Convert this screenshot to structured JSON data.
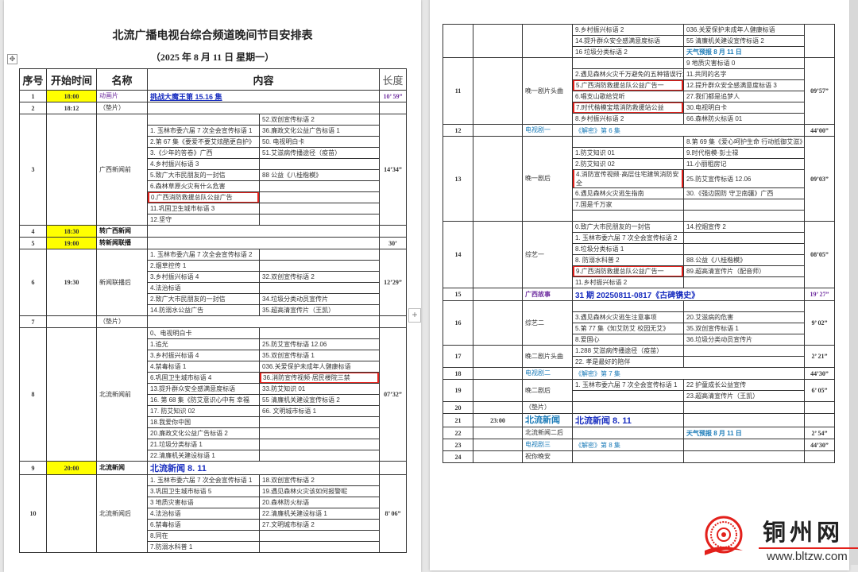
{
  "title": "北流广播电视台综合频道晚间节目安排表",
  "subtitle": "（2025 年 8 月 11 日  星期一）",
  "headers": [
    "序号",
    "开始时间",
    "名称",
    "内容",
    "长度"
  ],
  "colors": {
    "highlight": "#ffff00",
    "box": "#e3201b",
    "purple": "#7030a0",
    "teal": "#1b7bb8",
    "blue": "#1a2fc0"
  },
  "icons": {
    "move_handle": "move-icon",
    "add": "plus-icon"
  },
  "pages": [
    {
      "rows": [
        {
          "seq": "1",
          "time": "18:00",
          "time_highlight": true,
          "name": "动画片",
          "name_style": "purple",
          "content": "挑战大魔王第 15.16 集",
          "content_style": "link",
          "length": "10’ 59”",
          "length_style": "purple"
        },
        {
          "seq": "2",
          "time": "18:12",
          "name": "（垫片）",
          "content": "",
          "length": ""
        },
        {
          "seq": "3",
          "time": "",
          "name": "广西新闻前",
          "length": "14’34”",
          "items": [
            {
              "l": "",
              "r": "52.双创宣传标语 2"
            },
            {
              "l": "1. 玉林市委六届 7 次全会宣传标语 1",
              "r": "36.廉政文化公益广告标语 1"
            },
            {
              "l": "2.第 67 集《要爱不要艾炫酷更自护》",
              "r": "50. 电视明白卡"
            },
            {
              "l": "3.《少年的答卷》广西",
              "r": "51.艾滋病传播途径（疫苗）"
            },
            {
              "l": "4.乡村振兴标语 3",
              "r": ""
            },
            {
              "l": "5.致广大市民朋友的一封信",
              "r": "88 公益《八桂楷模》"
            },
            {
              "l": "6.森林草原火灾有什么危害",
              "r": ""
            },
            {
              "l": "0.广西消防救援总队公益广告",
              "r": "",
              "box": "l"
            },
            {
              "l": "11.巩固卫生城市标语 3",
              "r": ""
            },
            {
              "l": "12.坚守",
              "r": ""
            }
          ]
        },
        {
          "seq": "4",
          "time": "18:30",
          "time_highlight": true,
          "name": "转广西新闻",
          "name_style": "bold",
          "content": "",
          "length": ""
        },
        {
          "seq": "5",
          "time": "19:00",
          "time_highlight": true,
          "name": "转新闻联播",
          "name_style": "bold",
          "content": "",
          "length": "30’"
        },
        {
          "seq": "6",
          "time": "19:30",
          "name": "新闻联播后",
          "length": "12’29”",
          "items": [
            {
              "l": "1. 玉林市委六届 7 次全会宣传标语 2",
              "r": ""
            },
            {
              "l": "2.烟草控传 1",
              "r": ""
            },
            {
              "l": "3.乡村振兴标语 4",
              "r": "32.双创宣传标语 2"
            },
            {
              "l": "4.法治标语",
              "r": ""
            },
            {
              "l": "2.致广大市民朋友的一封信",
              "r": "34.垃圾分类动员宣传片"
            },
            {
              "l": "14.防溺水公益广告",
              "r": "35.超高清宣传片（王凯）"
            }
          ]
        },
        {
          "seq": "7",
          "time": "",
          "name": "（垫片）",
          "content": "",
          "length": ""
        },
        {
          "seq": "8",
          "time": "",
          "name": "北流新闻前",
          "length": "07’32”",
          "items": [
            {
              "l": "0、电视明白卡",
              "r": ""
            },
            {
              "l": "1.追光",
              "r": "25.防艾宣传标语 12.06"
            },
            {
              "l": "3.乡村振兴标语 4",
              "r": "35.双创宣传标语 1"
            },
            {
              "l": "4.禁毒标语 1",
              "r": "036.关爱保护未成年人健康标语"
            },
            {
              "l": "6.巩固卫生城市标语 4",
              "r": "36.消防宣传视频·居民楼院三禁",
              "box": "r"
            },
            {
              "l": "13.提升群众安全感满意度标语",
              "r": "33.防艾知识 01"
            },
            {
              "l": "16. 第 68 集《防艾意识心中有 幸福",
              "r": "55 清廉机关建设宣传标语 2"
            },
            {
              "l": "17. 防艾知识 02",
              "r": "66. 文明城市标语 1"
            },
            {
              "l": "18.我爱你中国",
              "r": ""
            },
            {
              "l": "20.廉政文化公益广告标语 2",
              "r": ""
            },
            {
              "l": "21.垃圾分类标语 1",
              "r": ""
            },
            {
              "l": "22.清廉机关建设标语 1",
              "r": ""
            }
          ]
        },
        {
          "seq": "9",
          "time": "20:00",
          "time_highlight": true,
          "name": "北流新闻",
          "name_style": "bold",
          "content": "北流新闻 8. 11",
          "content_style": "blue-big",
          "length": ""
        },
        {
          "seq": "10",
          "time": "",
          "name": "北流新闻后",
          "length": "8’ 06”",
          "items": [
            {
              "l": "1. 玉林市委六届 7 次全会宣传标语 1",
              "r": "18.双创宣传标语 2"
            },
            {
              "l": "3.巩固卫生城市标语 5",
              "r": "19.遇见森林火灾该如何报警呢"
            },
            {
              "l": "3 地质灾害标语",
              "r": "20.森林防火标语"
            },
            {
              "l": "4.法治标语",
              "r": "22.清廉机关建设标语 1"
            },
            {
              "l": "6.禁毒标语",
              "r": "27.文明城市标语 2"
            },
            {
              "l": "8.同在",
              "r": ""
            },
            {
              "l": "7.防溺水科普 1",
              "r": ""
            }
          ]
        }
      ]
    },
    {
      "rows": [
        {
          "seq": "",
          "time": "",
          "name": "",
          "length": "",
          "items": [
            {
              "l": "9.乡村振兴标语 2",
              "r": "036.关爱保护未成年人健康标语"
            },
            {
              "l": "14.提升群众安全感满意度标语",
              "r": "55 清廉机关建设宣传标语 2"
            },
            {
              "l": "16 垃圾分类标语 2",
              "r": "天气预报 8 月 11 日",
              "r_style": "weather"
            }
          ]
        },
        {
          "seq": "11",
          "time": "",
          "name": "晚一剧片头曲",
          "length": "09’57”",
          "items": [
            {
              "l": "",
              "r": "9 地质灾害标语 0"
            },
            {
              "l": "2.遇见森林火灾千万避免的五种错误行为",
              "r": "11.共同的名字"
            },
            {
              "l": "5.广西消防救援总队公益广告一",
              "r": "12.提升群众安全感满意度标语 3",
              "box": "l"
            },
            {
              "l": "6.唱支山歌给党听",
              "r": "27.我们都是追梦人"
            },
            {
              "l": "7.时代楷模宝塔消防救援站公益",
              "r": "30.电视明白卡",
              "box": "l"
            },
            {
              "l": "8.乡村振兴标语 2",
              "r": "66.森林防火标语 01"
            }
          ]
        },
        {
          "seq": "12",
          "time": "",
          "name": "电视剧一",
          "name_style": "teal",
          "content": "《解密》第 6 集",
          "content_style": "teal",
          "length": "44’00”"
        },
        {
          "seq": "13",
          "time": "",
          "name": "晚一剧后",
          "length": "09’03”",
          "items": [
            {
              "l": "",
              "r": "8.第 69 集《爱心呵护生命 行动抵御艾滋》"
            },
            {
              "l": "1.防艾知识 01",
              "r": "9.时代楷模·彭士禄"
            },
            {
              "l": "2.防艾知识 02",
              "r": "11.小丽租房记"
            },
            {
              "l": "4.消防宣传视频·高层住宅建筑消防安全",
              "r": "25.防艾宣传标语 12.06",
              "box": "l"
            },
            {
              "l": "6.遇见森林火灾逃生指南",
              "r": "30.《强边固防 守卫南疆》广西"
            },
            {
              "l": "7.国是千万家",
              "r": ""
            },
            {
              "l": "",
              "r": ""
            }
          ]
        },
        {
          "seq": "14",
          "time": "",
          "name": "综艺一",
          "length": "08’05”",
          "items": [
            {
              "l": "0.致广大市民朋友的一封信",
              "r": "14.控烟宣传 2"
            },
            {
              "l": "1. 玉林市委六届 7 次全会宣传标语 2",
              "r": ""
            },
            {
              "l": "8.垃圾分类标语 1",
              "r": ""
            },
            {
              "l": "8. 防溺水科普 2",
              "r": "88.公益《八桂楷模》"
            },
            {
              "l": "9.广西消防救援总队公益广告一",
              "r": "89.超高清宣传片（配音师）",
              "box": "l"
            },
            {
              "l": "11.乡村振兴标语 2",
              "r": ""
            }
          ]
        },
        {
          "seq": "15",
          "time": "",
          "name": "广西故事",
          "name_style": "purple-bold",
          "content": "31 期 20250811-0817《古碑镌史》",
          "content_style": "blue-bold",
          "length": "19’ 27”",
          "length_style": "purple"
        },
        {
          "seq": "16",
          "time": "",
          "name": "综艺二",
          "length": "9’ 02”",
          "items": [
            {
              "l": "",
              "r": ""
            },
            {
              "l": "3.遇见森林火灾逃生注意事项",
              "r": "20.艾滋病的危害"
            },
            {
              "l": "5.第 77 集《知艾防艾 校园无艾》",
              "r": "35.双创宣传标语 1"
            },
            {
              "l": "8.爱国心",
              "r": "36.垃圾分类动员宣传片"
            }
          ]
        },
        {
          "seq": "17",
          "time": "",
          "name": "晚二剧片头曲",
          "length": "2’ 21”",
          "items": [
            {
              "l": "1.288 艾滋病传播途径（疫苗）",
              "r": ""
            },
            {
              "l": "22. 孝是最好的陪伴",
              "r": ""
            }
          ]
        },
        {
          "seq": "18",
          "time": "",
          "name": "电视剧二",
          "name_style": "teal",
          "content": "《解密》第 7 集",
          "content_style": "teal",
          "length": "44’30”"
        },
        {
          "seq": "19",
          "time": "",
          "name": "晚二剧后",
          "length": "6’ 05”",
          "items": [
            {
              "l": "1. 玉林市委六届 7 次全会宣传标语 1",
              "r": "22 护童成长公益宣传"
            },
            {
              "l": "",
              "r": "23.超高清宣传片（王凯）"
            }
          ]
        },
        {
          "seq": "20",
          "time": "",
          "name": "（垫片）",
          "split": true,
          "content": "",
          "content_r": "",
          "length": ""
        },
        {
          "seq": "21",
          "time": "23:00",
          "name": "北流新闻",
          "name_style": "teal-bold",
          "split": true,
          "content": "北流新闻 8. 11",
          "content_style": "blue-big",
          "content_r": "",
          "length": ""
        },
        {
          "seq": "22",
          "time": "",
          "name": "北流新闻二后",
          "split": true,
          "content": "",
          "content_r": "天气预报 8 月 11 日",
          "content_r_style": "weather",
          "length": "2’ 54”"
        },
        {
          "seq": "23",
          "time": "",
          "name": "电视剧三",
          "name_style": "teal",
          "split": true,
          "content": "《解密》第 8 集",
          "content_style": "teal",
          "content_r": "",
          "length": "44’30”"
        },
        {
          "seq": "24",
          "time": "",
          "name": "祝你晚安",
          "split": true,
          "content": "",
          "content_r": "",
          "length": ""
        }
      ]
    }
  ],
  "watermark": {
    "name": "铜州网",
    "url": "www.bltzw.com"
  }
}
